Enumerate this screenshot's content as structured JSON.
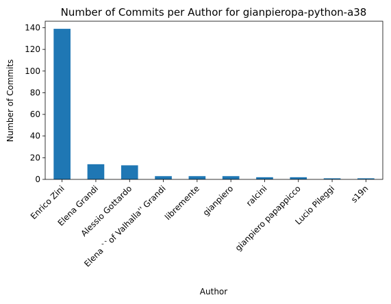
{
  "chart_data": {
    "type": "bar",
    "title": "Number of Commits per Author for gianpieropa-python-a38",
    "xlabel": "Author",
    "ylabel": "Number of Commits",
    "categories": [
      "Enrico Zini",
      "Elena Grandi",
      "Alessio Gottardo",
      "Elena ``of Valhalla'' Grandi",
      "libremente",
      "gianpiero",
      "ralcini",
      "gianpiero papappicco",
      "Lucio Pileggi",
      "s19n"
    ],
    "values": [
      139,
      14,
      13,
      3,
      3,
      3,
      2,
      2,
      1,
      1
    ],
    "ylim": [
      0,
      146
    ],
    "yticks": [
      0,
      20,
      40,
      60,
      80,
      100,
      120,
      140
    ],
    "grid": false,
    "bar_color": "#1f77b4"
  }
}
